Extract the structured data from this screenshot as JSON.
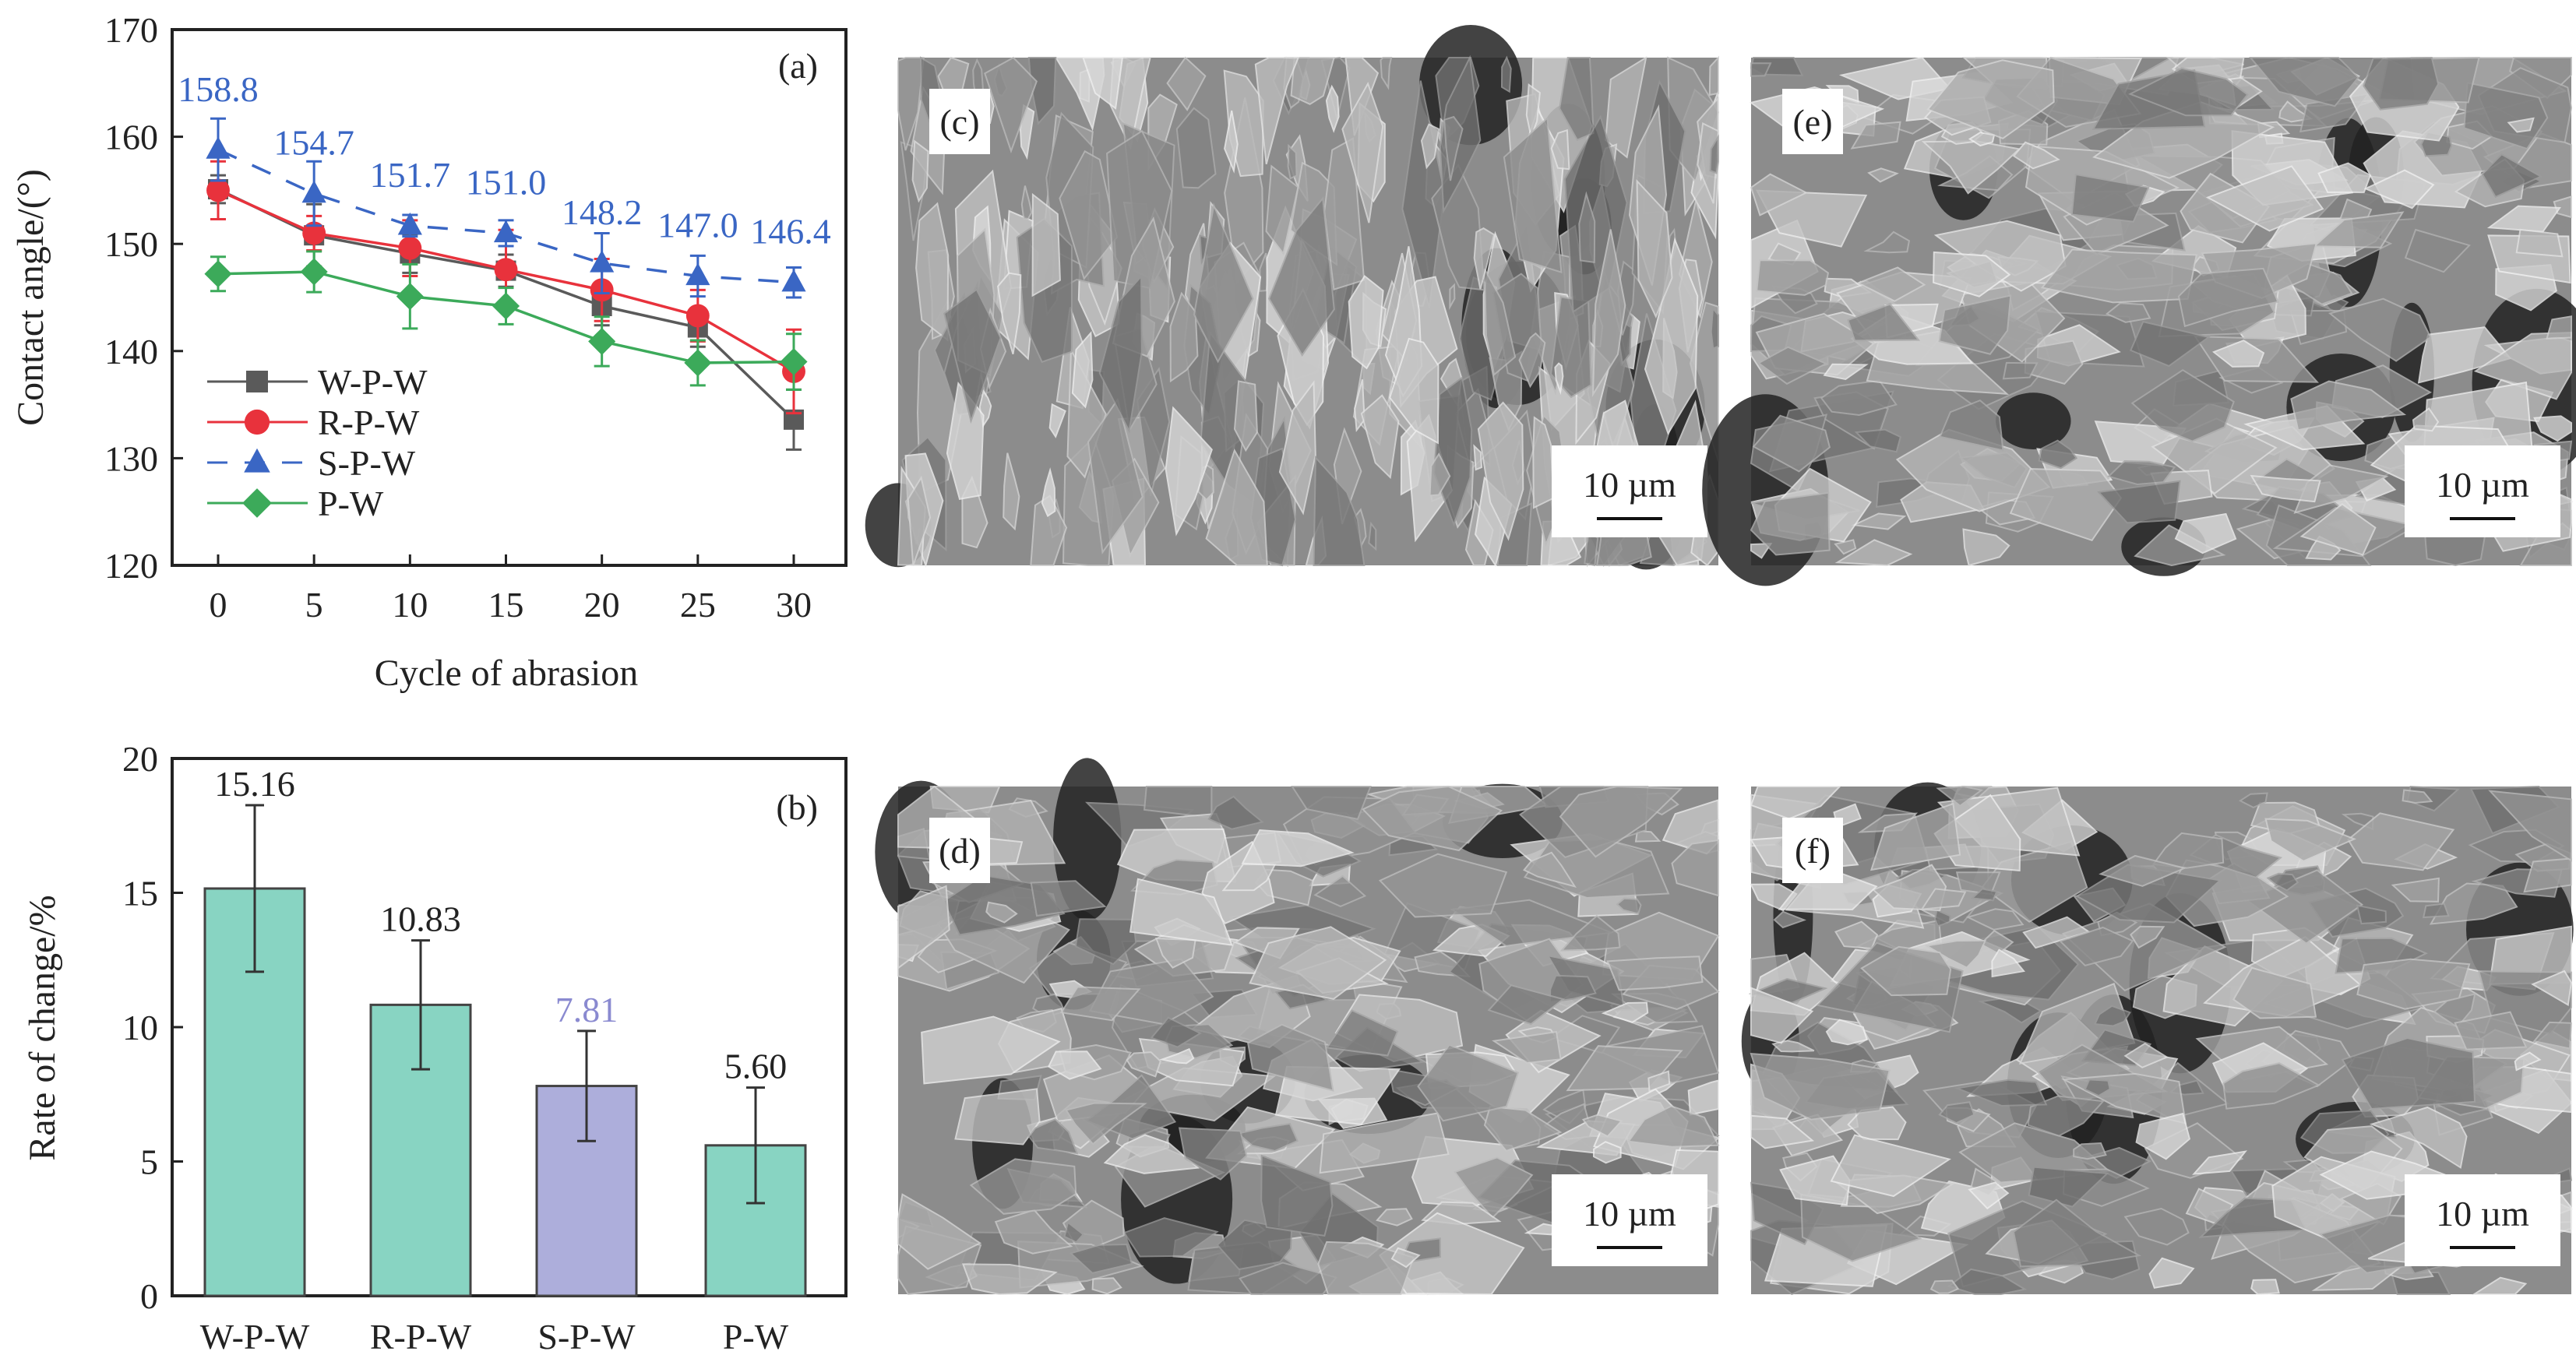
{
  "chart_data": [
    {
      "type": "line",
      "panel_label": "(a)",
      "xlabel": "Cycle of abrasion",
      "ylabel": "Contact angle/(°)",
      "x": [
        0,
        5,
        10,
        15,
        20,
        25,
        30
      ],
      "x_ticks": [
        "0",
        "5",
        "10",
        "15",
        "20",
        "25",
        "30"
      ],
      "ylim": [
        120,
        170
      ],
      "y_ticks": [
        "120",
        "130",
        "140",
        "150",
        "160",
        "170"
      ],
      "grid": false,
      "legend_placement": "lower-left",
      "series": [
        {
          "name": "W-P-W",
          "color": "#5a5a5a",
          "marker": "square",
          "dash": false,
          "values": [
            155.1,
            150.8,
            149.1,
            147.5,
            144.2,
            142.2,
            133.6
          ],
          "errors": [
            1.3,
            2.9,
            1.8,
            1.5,
            1.8,
            1.8,
            2.8
          ]
        },
        {
          "name": "R-P-W",
          "color": "#e8323c",
          "marker": "circle",
          "dash": false,
          "values": [
            155.0,
            151.0,
            149.6,
            147.6,
            145.7,
            143.3,
            138.1
          ],
          "errors": [
            2.7,
            1.6,
            2.6,
            3.7,
            2.9,
            2.4,
            3.9
          ]
        },
        {
          "name": "S-P-W",
          "color": "#3a66c4",
          "marker": "triangle",
          "dash": true,
          "values": [
            158.8,
            154.7,
            151.7,
            151.0,
            148.2,
            147.0,
            146.4
          ],
          "errors": [
            2.9,
            3.0,
            1.0,
            1.2,
            2.8,
            1.9,
            1.4
          ],
          "data_labels": [
            "158.8",
            "154.7",
            "151.7",
            "151.0",
            "148.2",
            "147.0",
            "146.4"
          ]
        },
        {
          "name": "P-W",
          "color": "#3caa5a",
          "marker": "diamond",
          "dash": false,
          "values": [
            147.2,
            147.4,
            145.1,
            144.2,
            140.9,
            138.9,
            139.0
          ],
          "errors": [
            1.6,
            1.9,
            3.0,
            1.7,
            2.3,
            2.1,
            2.6
          ]
        }
      ]
    },
    {
      "type": "bar",
      "panel_label": "(b)",
      "xlabel": "",
      "ylabel": "Rate of change/%",
      "categories": [
        "W-P-W",
        "R-P-W",
        "S-P-W",
        "P-W"
      ],
      "values": [
        15.16,
        10.83,
        7.81,
        5.6
      ],
      "errors": [
        3.1,
        2.4,
        2.05,
        2.15
      ],
      "data_labels": [
        "15.16",
        "10.83",
        "7.81",
        "5.60"
      ],
      "colors": [
        "#88d4c2",
        "#88d4c2",
        "#adaedb",
        "#88d4c2"
      ],
      "label_colors": [
        "#222222",
        "#222222",
        "#8a8ad0",
        "#222222"
      ],
      "ylim": [
        0,
        20
      ],
      "y_ticks": [
        "0",
        "5",
        "10",
        "15",
        "20"
      ],
      "grid": false
    }
  ],
  "micrographs": [
    {
      "label": "(c)",
      "scale_bar": "10 µm"
    },
    {
      "label": "(e)",
      "scale_bar": "10 µm"
    },
    {
      "label": "(d)",
      "scale_bar": "10 µm"
    },
    {
      "label": "(f)",
      "scale_bar": "10 µm"
    }
  ]
}
